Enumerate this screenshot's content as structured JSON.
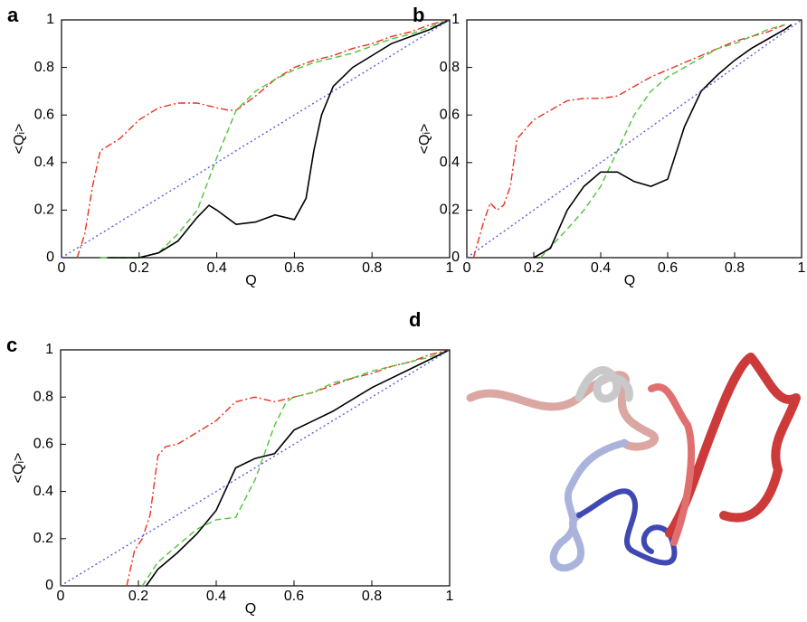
{
  "chart_data": [
    {
      "type": "line",
      "panel_label": "a",
      "xlabel": "Q",
      "ylabel": "<Qᵢ>",
      "xlim": [
        0,
        1
      ],
      "ylim": [
        0,
        1
      ],
      "xticks": [
        0,
        0.2,
        0.4,
        0.6,
        0.8,
        1
      ],
      "yticks": [
        0,
        0.2,
        0.4,
        0.6,
        0.8,
        1
      ],
      "series": [
        {
          "color": "#e8321e",
          "style": "dashdot",
          "x": [
            0.04,
            0.06,
            0.08,
            0.1,
            0.15,
            0.2,
            0.25,
            0.3,
            0.35,
            0.4,
            0.43,
            0.45,
            0.5,
            0.55,
            0.6,
            0.65,
            0.7,
            0.75,
            0.8,
            0.85,
            0.9,
            0.95,
            1
          ],
          "values": [
            0,
            0.1,
            0.3,
            0.45,
            0.5,
            0.58,
            0.63,
            0.65,
            0.65,
            0.63,
            0.62,
            0.62,
            0.68,
            0.75,
            0.8,
            0.83,
            0.85,
            0.88,
            0.9,
            0.93,
            0.95,
            0.98,
            1
          ]
        },
        {
          "color": "#4fc43a",
          "style": "dashed",
          "x": [
            0.1,
            0.2,
            0.25,
            0.3,
            0.35,
            0.4,
            0.45,
            0.5,
            0.55,
            0.6,
            0.65,
            0.7,
            0.75,
            0.8,
            0.85,
            0.9,
            0.95,
            1
          ],
          "values": [
            0,
            0,
            0.02,
            0.1,
            0.2,
            0.42,
            0.62,
            0.7,
            0.75,
            0.79,
            0.82,
            0.84,
            0.86,
            0.89,
            0.92,
            0.94,
            0.97,
            1
          ]
        },
        {
          "color": "#000000",
          "style": "solid",
          "x": [
            0.12,
            0.2,
            0.25,
            0.3,
            0.35,
            0.38,
            0.4,
            0.45,
            0.5,
            0.55,
            0.6,
            0.63,
            0.65,
            0.67,
            0.7,
            0.75,
            0.8,
            0.85,
            0.9,
            0.95,
            1
          ],
          "values": [
            0,
            0,
            0.02,
            0.07,
            0.17,
            0.22,
            0.2,
            0.14,
            0.15,
            0.18,
            0.16,
            0.25,
            0.45,
            0.6,
            0.72,
            0.8,
            0.85,
            0.9,
            0.93,
            0.96,
            1
          ]
        },
        {
          "color": "#5a5ae0",
          "style": "dotted",
          "x": [
            0,
            1
          ],
          "values": [
            0,
            1
          ]
        }
      ]
    },
    {
      "type": "line",
      "panel_label": "b",
      "xlabel": "Q",
      "ylabel": "<Qᵢ>",
      "xlim": [
        0,
        1
      ],
      "ylim": [
        0,
        1
      ],
      "xticks": [
        0,
        0.2,
        0.4,
        0.6,
        0.8,
        1
      ],
      "yticks": [
        0,
        0.2,
        0.4,
        0.6,
        0.8,
        1
      ],
      "series": [
        {
          "color": "#e8321e",
          "style": "dashdot",
          "x": [
            0.02,
            0.05,
            0.07,
            0.09,
            0.11,
            0.13,
            0.15,
            0.2,
            0.25,
            0.3,
            0.35,
            0.4,
            0.45,
            0.5,
            0.55,
            0.6,
            0.65,
            0.7,
            0.75,
            0.8,
            0.85,
            0.9,
            0.95
          ],
          "values": [
            0,
            0.15,
            0.23,
            0.2,
            0.22,
            0.3,
            0.5,
            0.58,
            0.62,
            0.66,
            0.67,
            0.67,
            0.68,
            0.72,
            0.76,
            0.79,
            0.82,
            0.85,
            0.88,
            0.91,
            0.93,
            0.95,
            0.98
          ]
        },
        {
          "color": "#4fc43a",
          "style": "dashed",
          "x": [
            0.22,
            0.3,
            0.35,
            0.4,
            0.45,
            0.5,
            0.55,
            0.6,
            0.65,
            0.7,
            0.75,
            0.8,
            0.85,
            0.9,
            0.95
          ],
          "values": [
            0,
            0.12,
            0.2,
            0.3,
            0.45,
            0.6,
            0.7,
            0.76,
            0.8,
            0.84,
            0.88,
            0.9,
            0.93,
            0.96,
            0.98
          ]
        },
        {
          "color": "#000000",
          "style": "solid",
          "x": [
            0.2,
            0.25,
            0.3,
            0.35,
            0.4,
            0.45,
            0.5,
            0.55,
            0.6,
            0.65,
            0.7,
            0.75,
            0.8,
            0.85,
            0.9,
            0.95,
            0.97
          ],
          "values": [
            0,
            0.04,
            0.2,
            0.3,
            0.36,
            0.36,
            0.32,
            0.3,
            0.33,
            0.55,
            0.7,
            0.77,
            0.83,
            0.88,
            0.92,
            0.96,
            0.98
          ]
        },
        {
          "color": "#5a5ae0",
          "style": "dotted",
          "x": [
            0,
            1
          ],
          "values": [
            0,
            1
          ]
        }
      ]
    },
    {
      "type": "line",
      "panel_label": "c",
      "xlabel": "Q",
      "ylabel": "<Qᵢ>",
      "xlim": [
        0,
        1
      ],
      "ylim": [
        0,
        1
      ],
      "xticks": [
        0,
        0.2,
        0.4,
        0.6,
        0.8,
        1
      ],
      "yticks": [
        0,
        0.2,
        0.4,
        0.6,
        0.8,
        1
      ],
      "series": [
        {
          "color": "#e8321e",
          "style": "dashdot",
          "x": [
            0.17,
            0.19,
            0.21,
            0.23,
            0.25,
            0.27,
            0.3,
            0.35,
            0.4,
            0.45,
            0.5,
            0.55,
            0.6,
            0.65,
            0.7,
            0.75,
            0.8,
            0.85,
            0.9,
            0.95,
            1
          ],
          "values": [
            0,
            0.15,
            0.2,
            0.3,
            0.55,
            0.59,
            0.6,
            0.65,
            0.7,
            0.78,
            0.8,
            0.78,
            0.8,
            0.82,
            0.85,
            0.88,
            0.9,
            0.93,
            0.95,
            0.98,
            1
          ]
        },
        {
          "color": "#4fc43a",
          "style": "dashed",
          "x": [
            0.21,
            0.25,
            0.3,
            0.35,
            0.4,
            0.45,
            0.5,
            0.55,
            0.58,
            0.6,
            0.65,
            0.7,
            0.75,
            0.8,
            0.85,
            0.9,
            0.95,
            1
          ],
          "values": [
            0,
            0.1,
            0.17,
            0.24,
            0.28,
            0.29,
            0.45,
            0.68,
            0.78,
            0.8,
            0.82,
            0.86,
            0.88,
            0.91,
            0.93,
            0.95,
            0.97,
            1
          ]
        },
        {
          "color": "#000000",
          "style": "solid",
          "x": [
            0.22,
            0.25,
            0.3,
            0.35,
            0.4,
            0.45,
            0.5,
            0.55,
            0.6,
            0.65,
            0.7,
            0.75,
            0.8,
            0.85,
            0.9,
            0.95,
            1
          ],
          "values": [
            0,
            0.07,
            0.14,
            0.22,
            0.32,
            0.5,
            0.54,
            0.56,
            0.66,
            0.7,
            0.74,
            0.79,
            0.84,
            0.88,
            0.92,
            0.96,
            1
          ]
        },
        {
          "color": "#5a5ae0",
          "style": "dotted",
          "x": [
            0,
            1
          ],
          "values": [
            0,
            1
          ]
        }
      ]
    }
  ],
  "panel_d": {
    "label": "d"
  }
}
